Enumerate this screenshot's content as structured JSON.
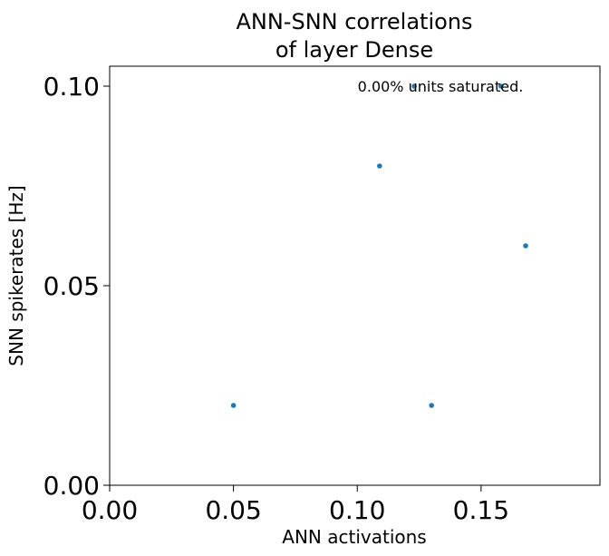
{
  "chart_data": {
    "type": "scatter",
    "title_lines": [
      "ANN-SNN correlations",
      "of layer Dense"
    ],
    "xlabel": "ANN activations",
    "ylabel": "SNN spikerates [Hz]",
    "annotation": "0.00% units saturated.",
    "xlim": [
      0.0,
      0.198
    ],
    "ylim": [
      0.0,
      0.105
    ],
    "x_ticks": [
      0.0,
      0.05,
      0.1,
      0.15
    ],
    "x_tick_labels": [
      "0.00",
      "0.05",
      "0.10",
      "0.15"
    ],
    "y_ticks": [
      0.0,
      0.05,
      0.1
    ],
    "y_tick_labels": [
      "0.00",
      "0.05",
      "0.10"
    ],
    "grid": false,
    "marker_color": "#1f77b4",
    "series": [
      {
        "points": [
          {
            "x": 0.05,
            "y": 0.02
          },
          {
            "x": 0.109,
            "y": 0.08
          },
          {
            "x": 0.123,
            "y": 0.1
          },
          {
            "x": 0.13,
            "y": 0.02
          },
          {
            "x": 0.158,
            "y": 0.1
          },
          {
            "x": 0.168,
            "y": 0.06
          }
        ]
      }
    ]
  }
}
